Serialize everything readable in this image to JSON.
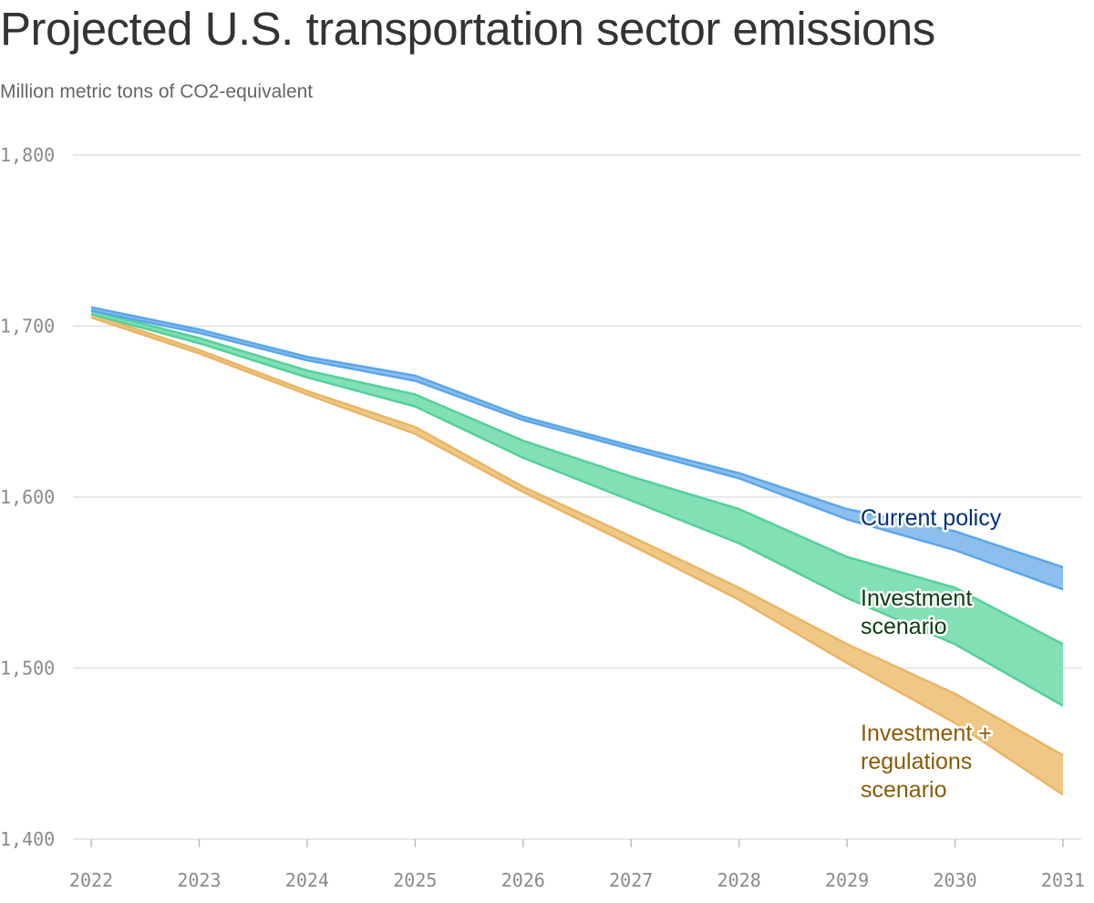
{
  "title": "Projected U.S. transportation sector emissions",
  "subtitle": "Million metric tons of CO2-equivalent",
  "chart_data": {
    "type": "area",
    "title": "Projected U.S. transportation sector emissions",
    "subtitle": "Million metric tons of CO2-equivalent",
    "x": [
      2022,
      2023,
      2024,
      2025,
      2026,
      2027,
      2028,
      2029,
      2030,
      2031
    ],
    "x_tick_labels": [
      "2022",
      "2023",
      "2024",
      "2025",
      "2026",
      "2027",
      "2028",
      "2029",
      "2030",
      "2031"
    ],
    "y_ticks": [
      1400,
      1500,
      1600,
      1700,
      1800
    ],
    "y_tick_labels": [
      "1,400",
      "1,500",
      "1,600",
      "1,700",
      "1,800"
    ],
    "ylim": [
      1400,
      1800
    ],
    "grid": "horizontal",
    "series": [
      {
        "name": "Current policy",
        "label_lines": [
          "Current policy"
        ],
        "fill": "#8cbfee",
        "stroke": "#5aa6ec",
        "label_color": "#002e7a",
        "upper": [
          1711,
          1698,
          1682,
          1671,
          1647,
          1630,
          1614,
          1593,
          1580,
          1559
        ],
        "lower": [
          1709,
          1696,
          1680,
          1668,
          1645,
          1628,
          1611,
          1587,
          1569,
          1546
        ]
      },
      {
        "name": "Investment scenario",
        "label_lines": [
          "Investment",
          "scenario"
        ],
        "fill": "#82e0b4",
        "stroke": "#55d09a",
        "label_color": "#0a3d10",
        "upper": [
          1709,
          1693,
          1674,
          1660,
          1633,
          1612,
          1593,
          1565,
          1547,
          1514
        ],
        "lower": [
          1707,
          1690,
          1670,
          1653,
          1623,
          1598,
          1573,
          1541,
          1514,
          1478
        ]
      },
      {
        "name": "Investment + regulations scenario",
        "label_lines": [
          "Investment +",
          "regulations",
          "scenario"
        ],
        "fill": "#f0c885",
        "stroke": "#e9b566",
        "label_color": "#8a5a06",
        "upper": [
          1707,
          1686,
          1662,
          1641,
          1606,
          1577,
          1547,
          1514,
          1485,
          1449
        ],
        "lower": [
          1705,
          1684,
          1660,
          1637,
          1603,
          1572,
          1540,
          1503,
          1468,
          1426
        ]
      }
    ]
  }
}
